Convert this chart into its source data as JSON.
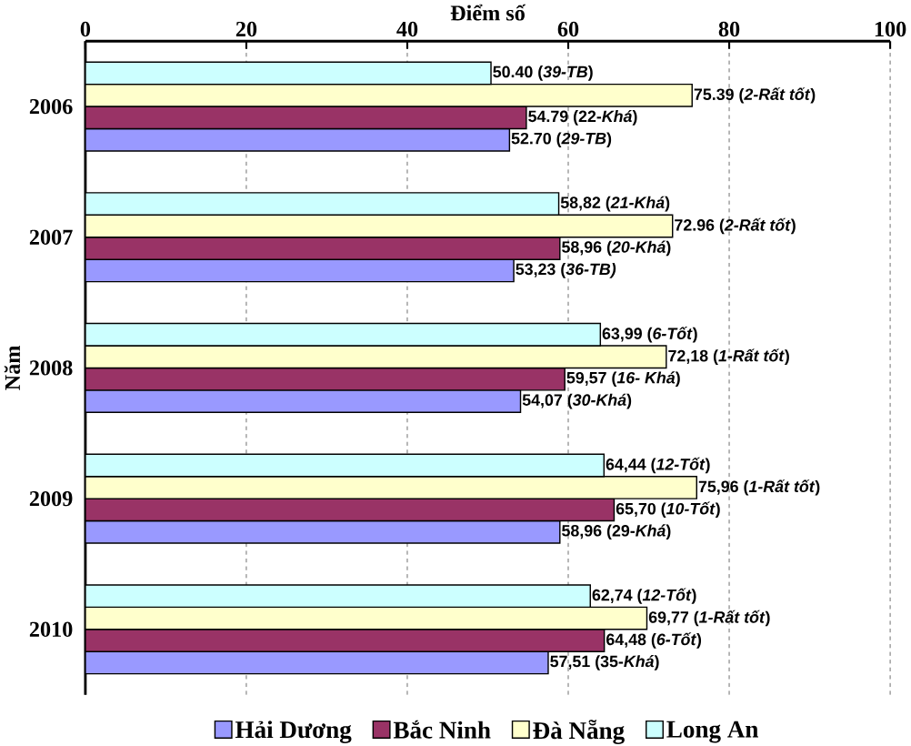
{
  "chart_data": {
    "type": "bar",
    "orientation": "horizontal",
    "xlabel": "Điểm số",
    "ylabel": "Năm",
    "categories": [
      "2006",
      "2007",
      "2008",
      "2009",
      "2010"
    ],
    "xlim": [
      0,
      100
    ],
    "xticks": [
      0,
      20,
      40,
      60,
      80,
      100
    ],
    "grid": "x",
    "legend": "bottom",
    "series": [
      {
        "name": "Hải Dương",
        "color": "#9999ff",
        "values": [
          52.7,
          53.23,
          54.07,
          58.96,
          57.51
        ],
        "value_labels": [
          "52.70 (*29-TB*)",
          "53,23 (*36-TB)*",
          "54,07 (*30-Khá*)",
          "58,96 (29-*Khá*)",
          "57,51 (35-*Khá*)"
        ]
      },
      {
        "name": "Bắc Ninh",
        "color": "#993366",
        "values": [
          54.79,
          58.96,
          59.57,
          65.7,
          64.48
        ],
        "value_labels": [
          "54.79 (22-*Khá*)",
          "58,96 (*20-Khá*)",
          "59,57 (*16- Khá*)",
          "65,70 (*10-Tốt*)",
          "64,48 (*6-Tốt*)"
        ]
      },
      {
        "name": "Đà Nẵng",
        "color": "#ffffcc",
        "values": [
          75.39,
          72.96,
          72.18,
          75.96,
          69.77
        ],
        "value_labels": [
          "75.39 (*2-Rất tốt*)",
          "72.96 (*2-Rất tốt*)",
          "72,18 (*1-Rất tốt*)",
          "75,96 (*1-Rất tốt*)",
          "69,77 (*1-Rất tốt*)"
        ]
      },
      {
        "name": "Long An",
        "color": "#ccffff",
        "values": [
          50.4,
          58.82,
          63.99,
          64.44,
          62.74
        ],
        "value_labels": [
          "50.40 (*39-TB*)",
          "58,82 (*21-Khá*)",
          "63,99 (*6-Tốt*)",
          "64,44 (*12-Tốt*)",
          "62,74 (*12-Tốt*)"
        ]
      }
    ]
  }
}
